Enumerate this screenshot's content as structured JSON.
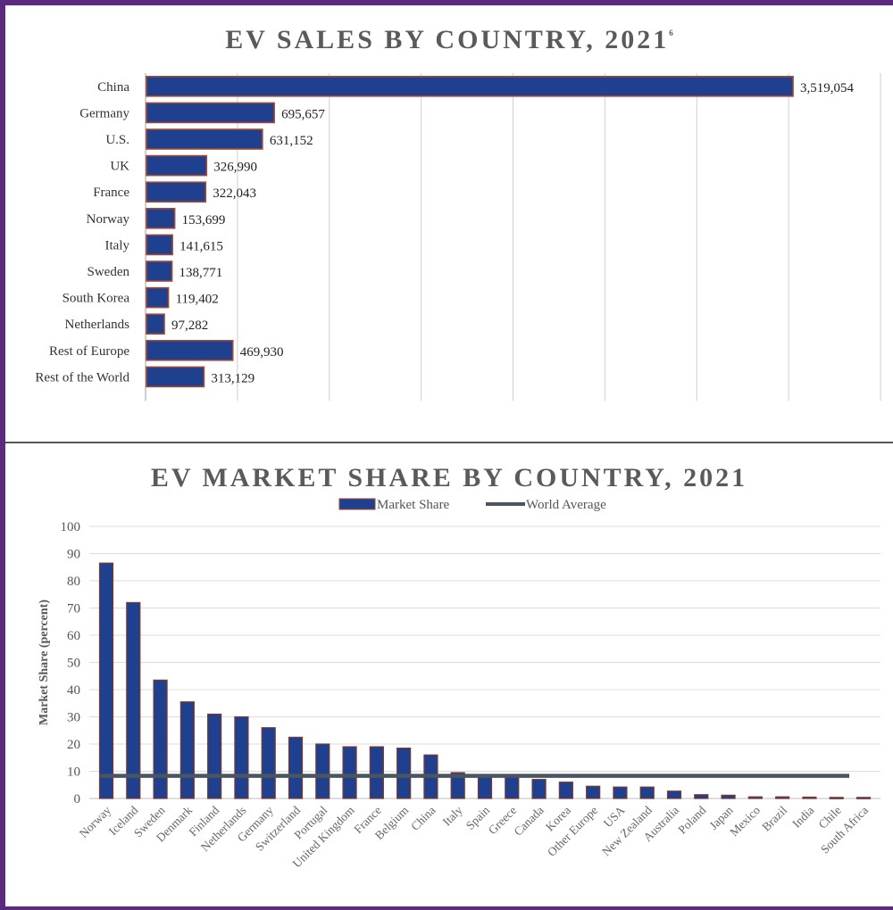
{
  "chart_data": [
    {
      "type": "bar",
      "orientation": "horizontal",
      "title": "EV SALES BY COUNTRY, 2021",
      "title_superscript": "6",
      "categories": [
        "China",
        "Germany",
        "U.S.",
        "UK",
        "France",
        "Norway",
        "Italy",
        "Sweden",
        "South Korea",
        "Netherlands",
        "Rest of Europe",
        "Rest of the World"
      ],
      "values": [
        3519054,
        695657,
        631152,
        326990,
        322043,
        153699,
        141615,
        138771,
        119402,
        97282,
        469930,
        313129
      ],
      "value_labels": [
        "3,519,054",
        "695,657",
        "631,152",
        "326,990",
        "322,043",
        "153,699",
        "141,615",
        "138,771",
        "119,402",
        "97,282",
        "469,930",
        "313,129"
      ],
      "xlim": [
        0,
        4000000
      ],
      "grid": true,
      "bar_color": "#1f3f8f"
    },
    {
      "type": "bar",
      "title": "EV MARKET SHARE BY COUNTRY, 2021",
      "ylabel": "Market Share (percent)",
      "ylim": [
        0,
        100
      ],
      "yticks": [
        0,
        10,
        20,
        30,
        40,
        50,
        60,
        70,
        80,
        90,
        100
      ],
      "categories": [
        "Norway",
        "Iceland",
        "Sweden",
        "Denmark",
        "Finland",
        "Netherlands",
        "Germany",
        "Switzerland",
        "Portugal",
        "United Kingdom",
        "France",
        "Belgium",
        "China",
        "Italy",
        "Spain",
        "Greece",
        "Canada",
        "Korea",
        "Other Europe",
        "USA",
        "New Zealand",
        "Australia",
        "Poland",
        "Japan",
        "Mexico",
        "Brazil",
        "India",
        "Chile",
        "South Africa"
      ],
      "series": [
        {
          "name": "Market Share",
          "values": [
            86.5,
            72,
            43.5,
            35.5,
            31,
            30,
            26,
            22.5,
            20,
            19,
            19,
            18.5,
            16,
            9.5,
            8.5,
            8,
            7,
            6,
            4.5,
            4.2,
            4.2,
            2.7,
            1.4,
            1.2,
            0.6,
            0.6,
            0.5,
            0.4,
            0.4
          ],
          "color": "#1f3f8f"
        },
        {
          "name": "World Average",
          "value": 8.3,
          "color": "#4a5560"
        }
      ],
      "legend_position": "top",
      "grid": true
    }
  ]
}
